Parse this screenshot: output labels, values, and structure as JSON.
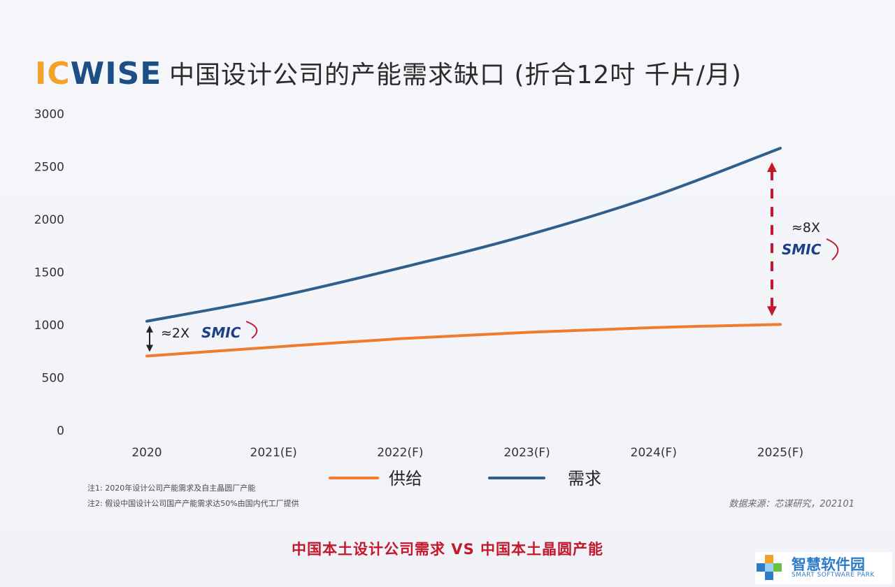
{
  "header": {
    "logo_part1": "IC",
    "logo_part2": "WISE",
    "title": "中国设计公司的产能需求缺口 (折合12吋 千片/月)"
  },
  "chart_data": {
    "type": "line",
    "title": "中国设计公司的产能需求缺口 (折合12吋 千片/月)",
    "categories": [
      "2020",
      "2021(E)",
      "2022(F)",
      "2023(F)",
      "2024(F)",
      "2025(F)"
    ],
    "ylim": [
      0,
      3000
    ],
    "yticks": [
      0,
      500,
      1000,
      1500,
      2000,
      2500,
      3000
    ],
    "grid": false,
    "legend_position": "bottom",
    "series": [
      {
        "name": "供给",
        "color": "#f07b2f",
        "values": [
          705,
          790,
          870,
          930,
          975,
          1005
        ]
      },
      {
        "name": "需求",
        "color": "#2f5f8a",
        "values": [
          1035,
          1260,
          1540,
          1850,
          2220,
          2675
        ]
      }
    ],
    "annotations": [
      {
        "text": "≈2X",
        "brand": "SMIC",
        "at": "2020"
      },
      {
        "text": "≈8X",
        "brand": "SMIC",
        "at": "2025(F)"
      }
    ]
  },
  "notes": [
    "注1: 2020年设计公司产能需求及自主晶圆厂产能",
    "注2: 假设中国设计公司国产产能需求达50%由国内代工厂提供"
  ],
  "source": "数据来源：芯谋研究，202101",
  "footer": "中国本土设计公司需求 VS 中国本土晶圆产能",
  "watermark": {
    "cn": "智慧软件园",
    "en": "SMART SOFTWARE PARK"
  },
  "colors": {
    "supply": "#f07b2f",
    "demand": "#2f5f8a",
    "arrow_red": "#c4172c",
    "footer_red": "#c4172c"
  }
}
